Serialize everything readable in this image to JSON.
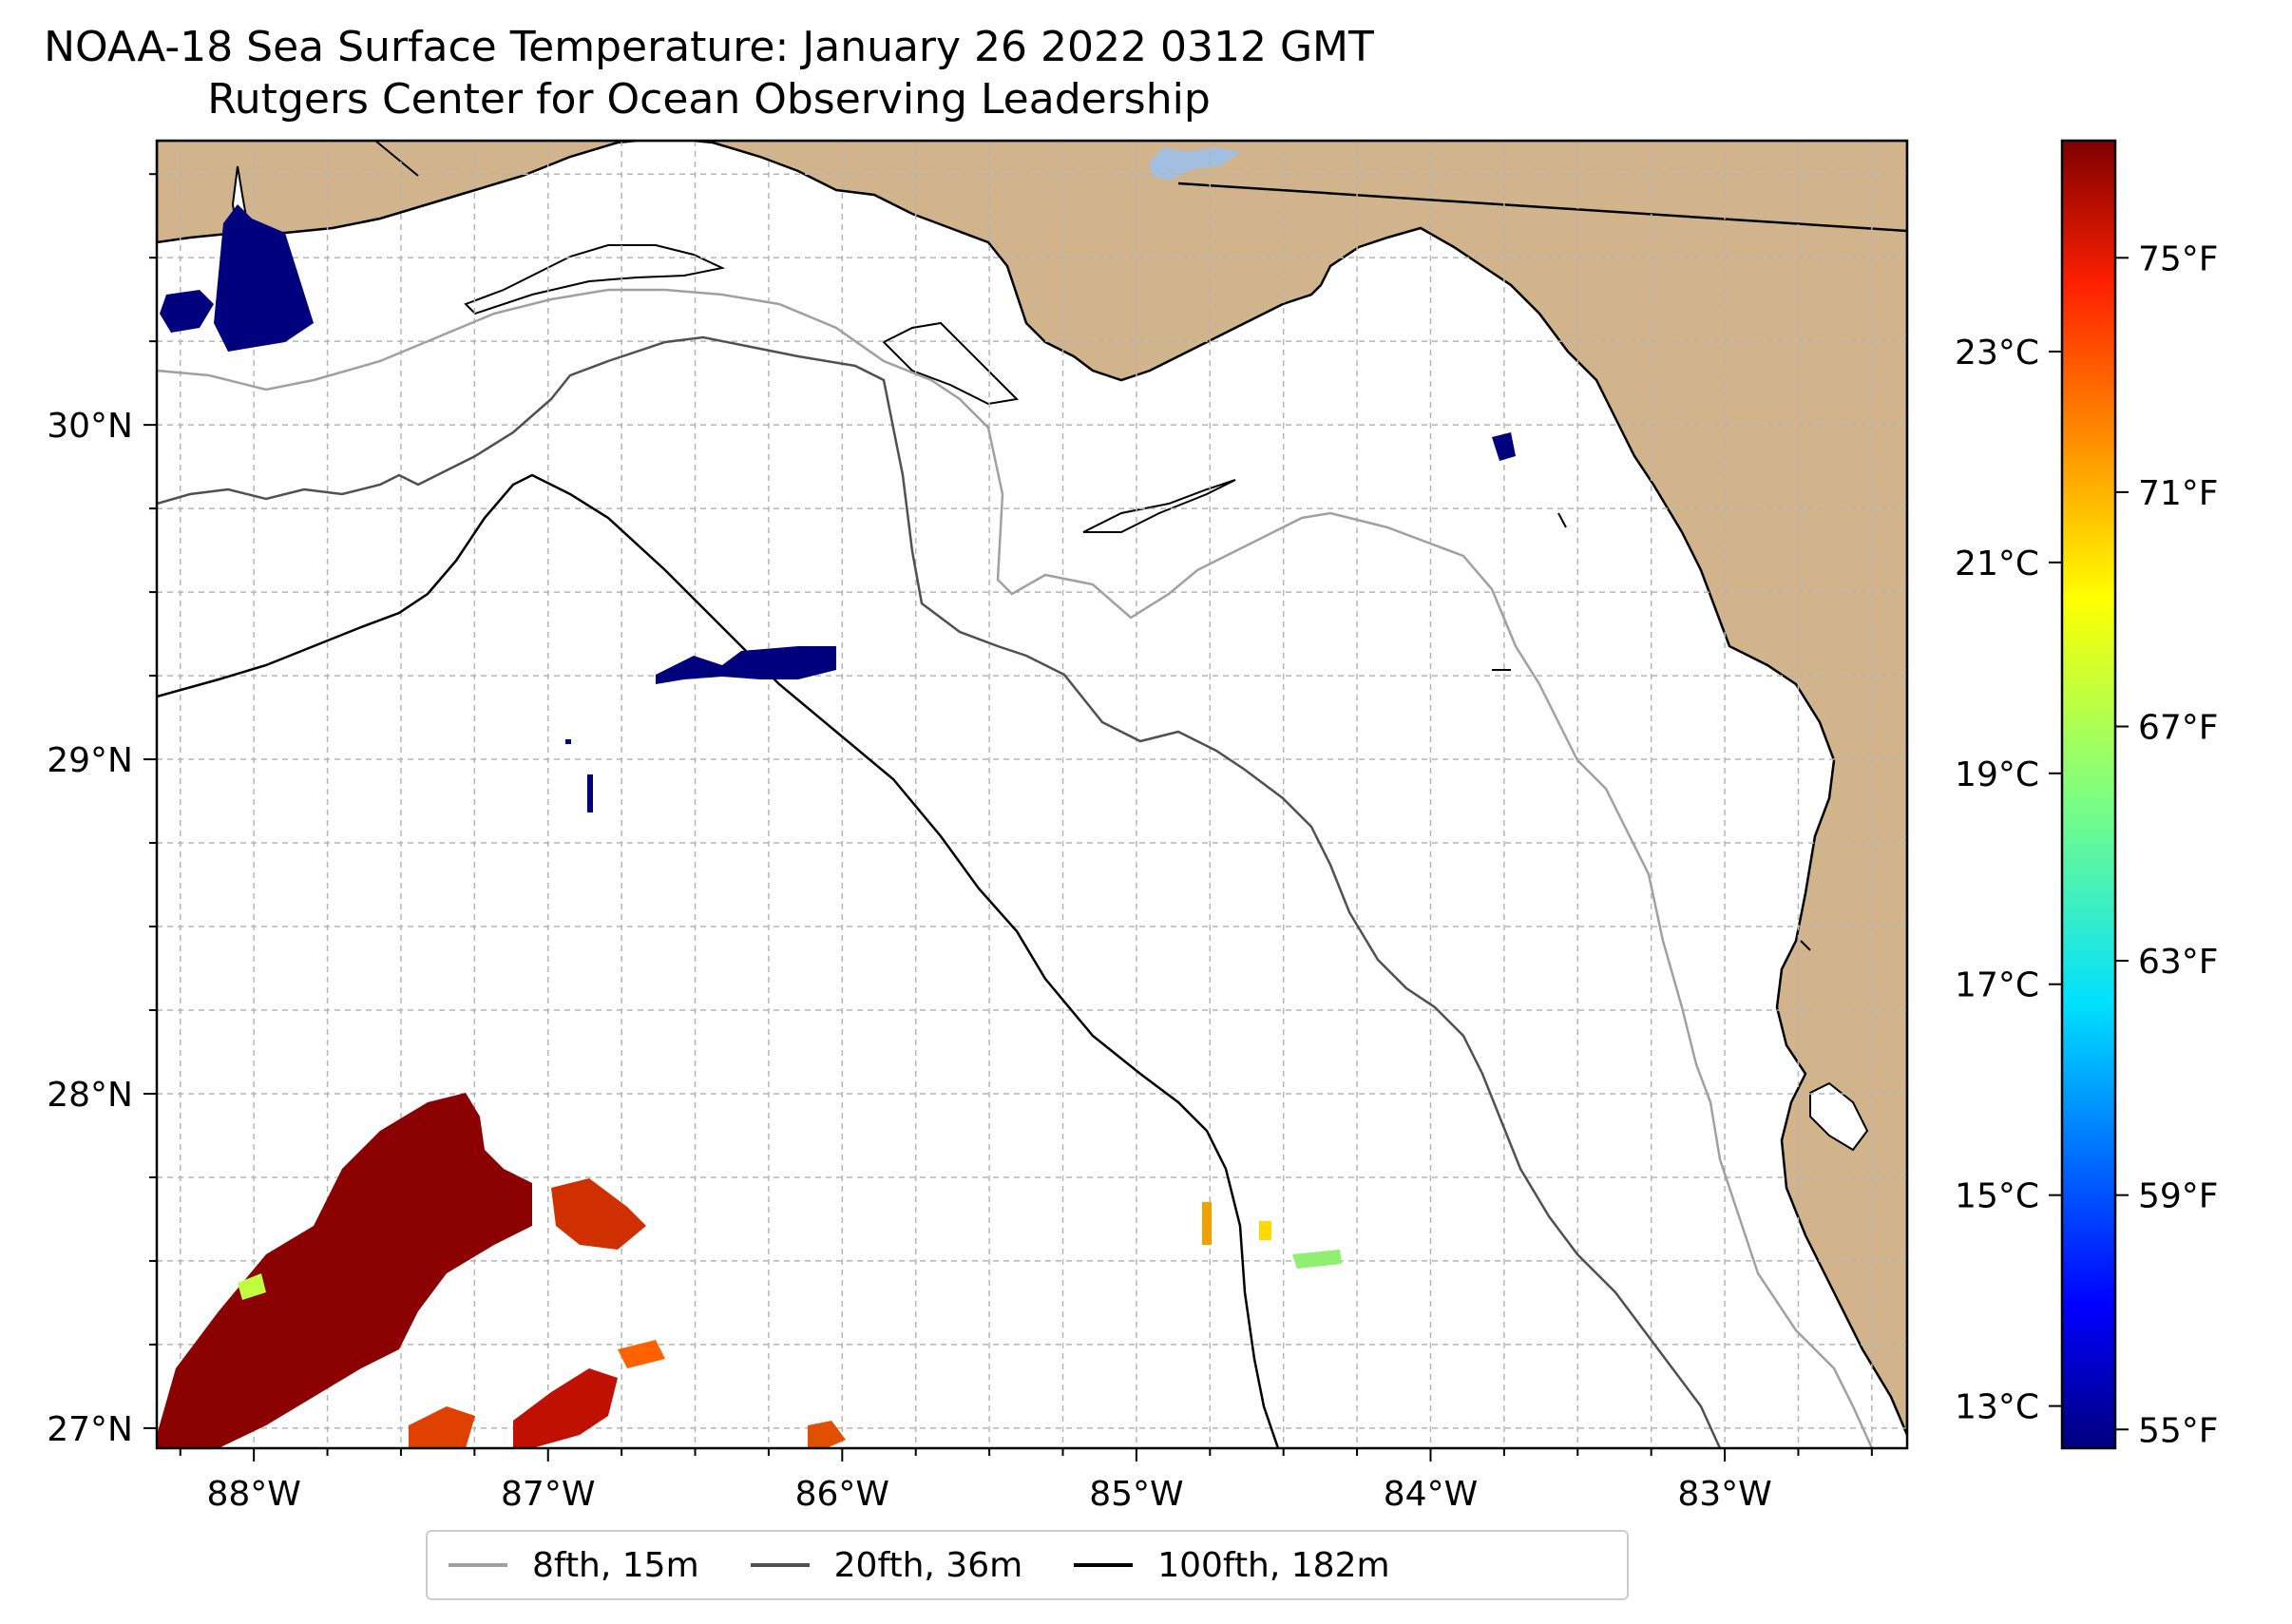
{
  "title": {
    "line1": "NOAA-18 Sea Surface Temperature: January 26 2022 0312 GMT",
    "line2": "Rutgers Center for Ocean Observing Leadership"
  },
  "map": {
    "extent": {
      "lon_min": -88.33,
      "lon_max": -82.38,
      "lat_min": 26.94,
      "lat_max": 30.85
    },
    "colors": {
      "land": "#d2b48c",
      "ocean": "#ffffff",
      "grid": "#b0b0b0",
      "lake": "#a3bfe0"
    },
    "lon_ticks": [
      -88,
      -87,
      -86,
      -85,
      -84,
      -83
    ],
    "lon_tick_labels": [
      "88°W",
      "87°W",
      "86°W",
      "85°W",
      "84°W",
      "83°W"
    ],
    "lat_ticks": [
      27,
      28,
      29,
      30
    ],
    "lat_tick_labels": [
      "27°N",
      "28°N",
      "29°N",
      "30°N"
    ]
  },
  "colorbar": {
    "celsius_labels": [
      "13°C",
      "15°C",
      "17°C",
      "19°C",
      "21°C",
      "23°C"
    ],
    "celsius_values": [
      13,
      15,
      17,
      19,
      21,
      23
    ],
    "fahrenheit_labels": [
      "55°F",
      "59°F",
      "63°F",
      "67°F",
      "71°F",
      "75°F"
    ],
    "fahrenheit_values": [
      55,
      59,
      63,
      67,
      71,
      75
    ],
    "range_c": [
      12.6,
      25.0
    ],
    "colormap": "jet"
  },
  "legend": {
    "items": [
      {
        "label": "8fth, 15m",
        "color": "#a0a0a0"
      },
      {
        "label": "20fth, 36m",
        "color": "#505050"
      },
      {
        "label": "100fth, 182m",
        "color": "#000000"
      }
    ]
  }
}
